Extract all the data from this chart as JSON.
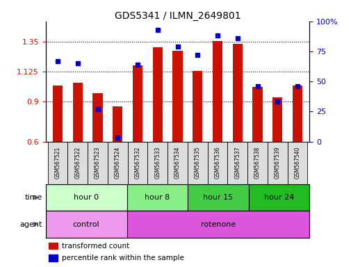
{
  "title": "GDS5341 / ILMN_2649801",
  "samples": [
    "GSM567521",
    "GSM567522",
    "GSM567523",
    "GSM567524",
    "GSM567532",
    "GSM567533",
    "GSM567534",
    "GSM567535",
    "GSM567536",
    "GSM567537",
    "GSM567538",
    "GSM567539",
    "GSM567540"
  ],
  "transformed_count": [
    1.02,
    1.04,
    0.96,
    0.865,
    1.17,
    1.305,
    1.28,
    1.13,
    1.355,
    1.33,
    1.01,
    0.93,
    1.02
  ],
  "percentile_rank": [
    67,
    65,
    27,
    3,
    64,
    93,
    79,
    72,
    88,
    86,
    46,
    33,
    46
  ],
  "ylim_left": [
    0.6,
    1.5
  ],
  "ylim_right": [
    0,
    100
  ],
  "yticks_left": [
    0.6,
    0.9,
    1.125,
    1.35
  ],
  "yticks_right": [
    0,
    25,
    50,
    75,
    100
  ],
  "ytick_labels_left": [
    "0.6",
    "0.9",
    "1.125",
    "1.35"
  ],
  "ytick_labels_right": [
    "0",
    "25",
    "50",
    "75",
    "100%"
  ],
  "bar_color": "#CC1100",
  "dot_color": "#0000CC",
  "bar_baseline": 0.6,
  "time_groups": [
    {
      "label": "hour 0",
      "start": 0,
      "end": 4,
      "color": "#CCFFCC"
    },
    {
      "label": "hour 8",
      "start": 4,
      "end": 7,
      "color": "#88EE88"
    },
    {
      "label": "hour 15",
      "start": 7,
      "end": 10,
      "color": "#44CC44"
    },
    {
      "label": "hour 24",
      "start": 10,
      "end": 13,
      "color": "#22BB22"
    }
  ],
  "agent_groups": [
    {
      "label": "control",
      "start": 0,
      "end": 4,
      "color": "#EE99EE"
    },
    {
      "label": "rotenone",
      "start": 4,
      "end": 13,
      "color": "#DD55DD"
    }
  ],
  "time_label": "time",
  "agent_label": "agent",
  "legend_items": [
    {
      "label": "transformed count",
      "color": "#CC1100"
    },
    {
      "label": "percentile rank within the sample",
      "color": "#0000CC"
    }
  ],
  "tick_label_color_left": "#CC1100",
  "tick_label_color_right": "#0000CC",
  "sample_box_color": "#DDDDDD"
}
